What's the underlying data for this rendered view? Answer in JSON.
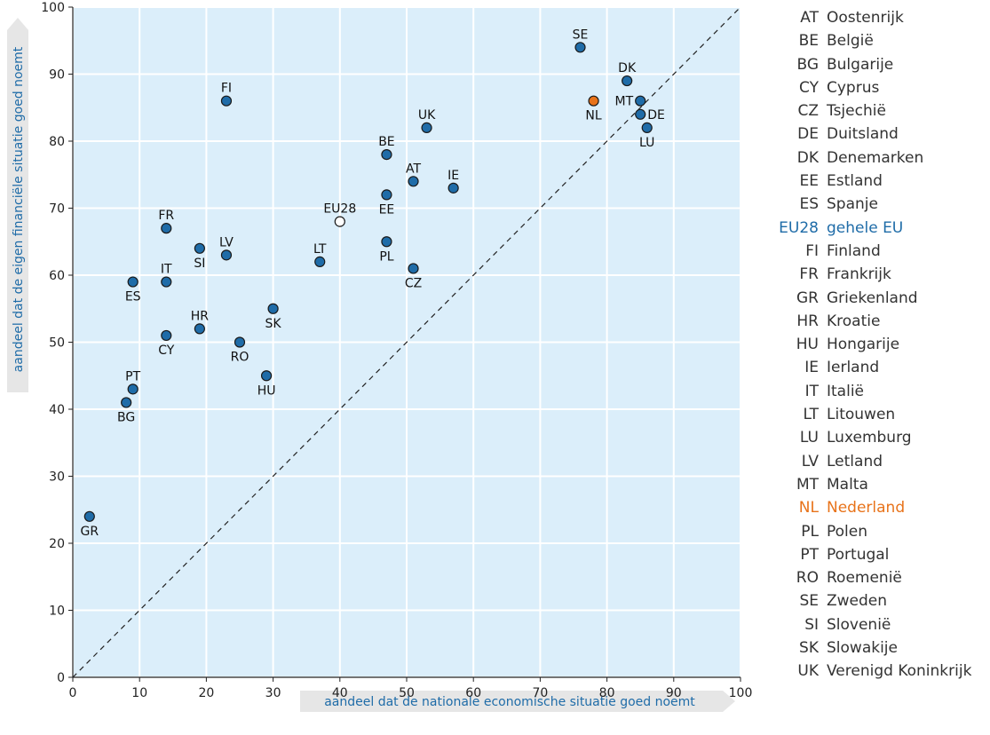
{
  "chart_data": {
    "type": "scatter",
    "xlabel": "aandeel dat de nationale economische situatie goed noemt",
    "ylabel": "aandeel dat de eigen financiële situatie goed noemt",
    "xlim": [
      0,
      100
    ],
    "ylim": [
      0,
      100
    ],
    "xticks": [
      0,
      10,
      20,
      30,
      40,
      50,
      60,
      70,
      80,
      90,
      100
    ],
    "yticks": [
      0,
      10,
      20,
      30,
      40,
      50,
      60,
      70,
      80,
      90,
      100
    ],
    "grid": true,
    "reference_line": "diagonal y = x (dashed)",
    "colors": {
      "plot_background": "#dbeefa",
      "grid": "#ffffff",
      "country": "#1f6ca8",
      "highlight": "#e8731a",
      "eu_average": "#ffffff",
      "axis_label_bg": "#e6e6e6"
    },
    "points": [
      {
        "code": "AT",
        "x": 51,
        "y": 74
      },
      {
        "code": "BE",
        "x": 47,
        "y": 78
      },
      {
        "code": "BG",
        "x": 8,
        "y": 41
      },
      {
        "code": "CY",
        "x": 14,
        "y": 51
      },
      {
        "code": "CZ",
        "x": 51,
        "y": 61
      },
      {
        "code": "DE",
        "x": 85,
        "y": 84
      },
      {
        "code": "DK",
        "x": 83,
        "y": 89
      },
      {
        "code": "EE",
        "x": 47,
        "y": 72
      },
      {
        "code": "ES",
        "x": 9,
        "y": 59
      },
      {
        "code": "EU28",
        "x": 40,
        "y": 68,
        "style": "eu"
      },
      {
        "code": "FI",
        "x": 23,
        "y": 86
      },
      {
        "code": "FR",
        "x": 14,
        "y": 67
      },
      {
        "code": "GR",
        "x": 2.5,
        "y": 24
      },
      {
        "code": "HR",
        "x": 19,
        "y": 52
      },
      {
        "code": "HU",
        "x": 29,
        "y": 45
      },
      {
        "code": "IE",
        "x": 57,
        "y": 73
      },
      {
        "code": "IT",
        "x": 14,
        "y": 59
      },
      {
        "code": "LT",
        "x": 37,
        "y": 62
      },
      {
        "code": "LU",
        "x": 86,
        "y": 82
      },
      {
        "code": "LV",
        "x": 23,
        "y": 63
      },
      {
        "code": "MT",
        "x": 85,
        "y": 86
      },
      {
        "code": "NL",
        "x": 78,
        "y": 86,
        "style": "highlight"
      },
      {
        "code": "PL",
        "x": 47,
        "y": 65
      },
      {
        "code": "PT",
        "x": 9,
        "y": 43
      },
      {
        "code": "RO",
        "x": 25,
        "y": 50
      },
      {
        "code": "SE",
        "x": 76,
        "y": 94
      },
      {
        "code": "SI",
        "x": 19,
        "y": 64
      },
      {
        "code": "SK",
        "x": 30,
        "y": 55
      },
      {
        "code": "UK",
        "x": 53,
        "y": 82
      }
    ],
    "legend": [
      {
        "code": "AT",
        "name": "Oostenrijk"
      },
      {
        "code": "BE",
        "name": "België"
      },
      {
        "code": "BG",
        "name": "Bulgarije"
      },
      {
        "code": "CY",
        "name": "Cyprus"
      },
      {
        "code": "CZ",
        "name": "Tsjechië"
      },
      {
        "code": "DE",
        "name": "Duitsland"
      },
      {
        "code": "DK",
        "name": "Denemarken"
      },
      {
        "code": "EE",
        "name": "Estland"
      },
      {
        "code": "ES",
        "name": "Spanje"
      },
      {
        "code": "EU28",
        "name": "gehele EU",
        "style": "eu"
      },
      {
        "code": "FI",
        "name": "Finland"
      },
      {
        "code": "FR",
        "name": "Frankrijk"
      },
      {
        "code": "GR",
        "name": "Griekenland"
      },
      {
        "code": "HR",
        "name": "Kroatie"
      },
      {
        "code": "HU",
        "name": "Hongarije"
      },
      {
        "code": "IE",
        "name": "Ierland"
      },
      {
        "code": "IT",
        "name": "Italië"
      },
      {
        "code": "LT",
        "name": "Litouwen"
      },
      {
        "code": "LU",
        "name": "Luxemburg"
      },
      {
        "code": "LV",
        "name": "Letland"
      },
      {
        "code": "MT",
        "name": "Malta"
      },
      {
        "code": "NL",
        "name": "Nederland",
        "style": "highlight"
      },
      {
        "code": "PL",
        "name": "Polen"
      },
      {
        "code": "PT",
        "name": "Portugal"
      },
      {
        "code": "RO",
        "name": "Roemenië"
      },
      {
        "code": "SE",
        "name": "Zweden"
      },
      {
        "code": "SI",
        "name": "Slovenië"
      },
      {
        "code": "SK",
        "name": "Slowakije"
      },
      {
        "code": "UK",
        "name": "Verenigd Koninkrijk"
      }
    ]
  }
}
